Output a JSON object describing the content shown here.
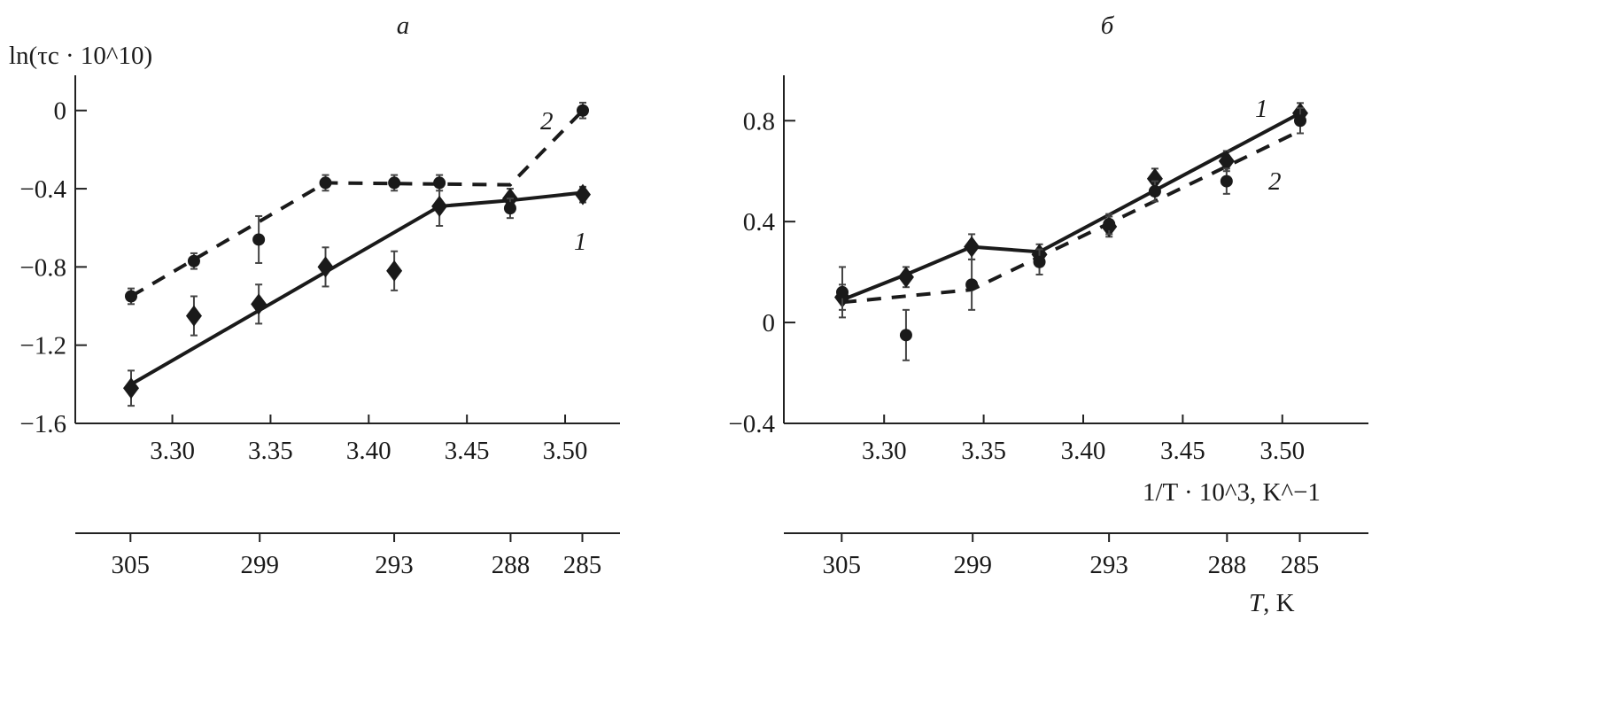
{
  "chart_data": [
    {
      "type": "line",
      "panel_label": "а",
      "ylabel": "ln(τc · 10^10)",
      "ylabel_main": "ln(τ",
      "ylabel_sub": "c",
      "ylabel_mid": " · 10",
      "ylabel_sup": "10",
      "ylabel_end": ")",
      "ylim": [
        -1.6,
        0.18
      ],
      "yticks": [
        0,
        -0.4,
        -0.8,
        -1.2,
        -1.6
      ],
      "ytick_labels": [
        "0",
        "−0.4",
        "−0.8",
        "−1.2",
        "−1.6"
      ],
      "xlim": [
        3.21,
        3.55
      ],
      "xticks": [
        3.3,
        3.35,
        3.4,
        3.45,
        3.5
      ],
      "xtick_labels": [
        "3.30",
        "3.35",
        "3.40",
        "3.45",
        "3.50"
      ],
      "x": [
        3.279,
        3.311,
        3.344,
        3.378,
        3.413,
        3.436,
        3.472,
        3.509
      ],
      "T_ticks": [
        305,
        299,
        293,
        288,
        285
      ],
      "T_tick_labels": [
        "305",
        "299",
        "293",
        "288",
        "285"
      ],
      "series": [
        {
          "name": "1",
          "marker": "diamond",
          "line": "solid",
          "values": [
            -1.42,
            -1.05,
            -0.99,
            -0.8,
            -0.82,
            -0.49,
            -0.45,
            -0.43
          ],
          "errors": [
            0.09,
            0.1,
            0.1,
            0.1,
            0.1,
            0.1,
            0.05,
            0.04
          ],
          "fit_x": [
            3.279,
            3.436,
            3.472,
            3.509
          ],
          "fit_y": [
            -1.4,
            -0.49,
            -0.46,
            -0.42
          ]
        },
        {
          "name": "2",
          "marker": "circle",
          "line": "dashed",
          "values": [
            -0.95,
            -0.77,
            -0.66,
            -0.37,
            -0.37,
            -0.37,
            -0.5,
            0.0
          ],
          "errors": [
            0.04,
            0.04,
            0.12,
            0.04,
            0.04,
            0.04,
            0.05,
            0.04
          ],
          "fit_x": [
            3.279,
            3.378,
            3.472,
            3.509
          ],
          "fit_y": [
            -0.95,
            -0.37,
            -0.38,
            0.0
          ]
        }
      ]
    },
    {
      "type": "line",
      "panel_label": "б",
      "ylim": [
        -0.4,
        0.98
      ],
      "yticks": [
        0.8,
        0.4,
        0,
        -0.4
      ],
      "ytick_labels": [
        "0.8",
        "0.4",
        "0",
        "−0.4"
      ],
      "xlim": [
        3.21,
        3.56
      ],
      "xticks": [
        3.3,
        3.35,
        3.4,
        3.45,
        3.5
      ],
      "xtick_labels": [
        "3.30",
        "3.35",
        "3.40",
        "3.45",
        "3.50"
      ],
      "x": [
        3.279,
        3.311,
        3.344,
        3.378,
        3.413,
        3.436,
        3.472,
        3.509
      ],
      "xlabel": "1/T · 10^3, K^−1",
      "xlabel_a": "1/",
      "xlabel_T": "T",
      "xlabel_b": " · 10",
      "xlabel_sup1": "3",
      "xlabel_c": ", K",
      "xlabel_sup2": "−1",
      "T_ticks": [
        305,
        299,
        293,
        288,
        285
      ],
      "T_tick_labels": [
        "305",
        "299",
        "293",
        "288",
        "285"
      ],
      "T_label_T": "T",
      "T_label_unit": ", K",
      "series": [
        {
          "name": "1",
          "marker": "diamond",
          "line": "solid",
          "values": [
            0.1,
            0.18,
            0.3,
            0.27,
            0.38,
            0.57,
            0.64,
            0.83
          ],
          "errors": [
            0.05,
            0.04,
            0.05,
            0.04,
            0.04,
            0.04,
            0.04,
            0.04
          ],
          "fit_x": [
            3.279,
            3.311,
            3.344,
            3.378,
            3.509
          ],
          "fit_y": [
            0.09,
            0.19,
            0.3,
            0.28,
            0.83
          ]
        },
        {
          "name": "2",
          "marker": "circle",
          "line": "dashed",
          "values": [
            0.12,
            -0.05,
            0.15,
            0.24,
            0.39,
            0.52,
            0.56,
            0.8
          ],
          "errors": [
            0.1,
            0.1,
            0.1,
            0.05,
            0.04,
            0.04,
            0.05,
            0.05
          ],
          "fit_x": [
            3.279,
            3.344,
            3.509
          ],
          "fit_y": [
            0.08,
            0.13,
            0.76
          ]
        }
      ]
    }
  ]
}
